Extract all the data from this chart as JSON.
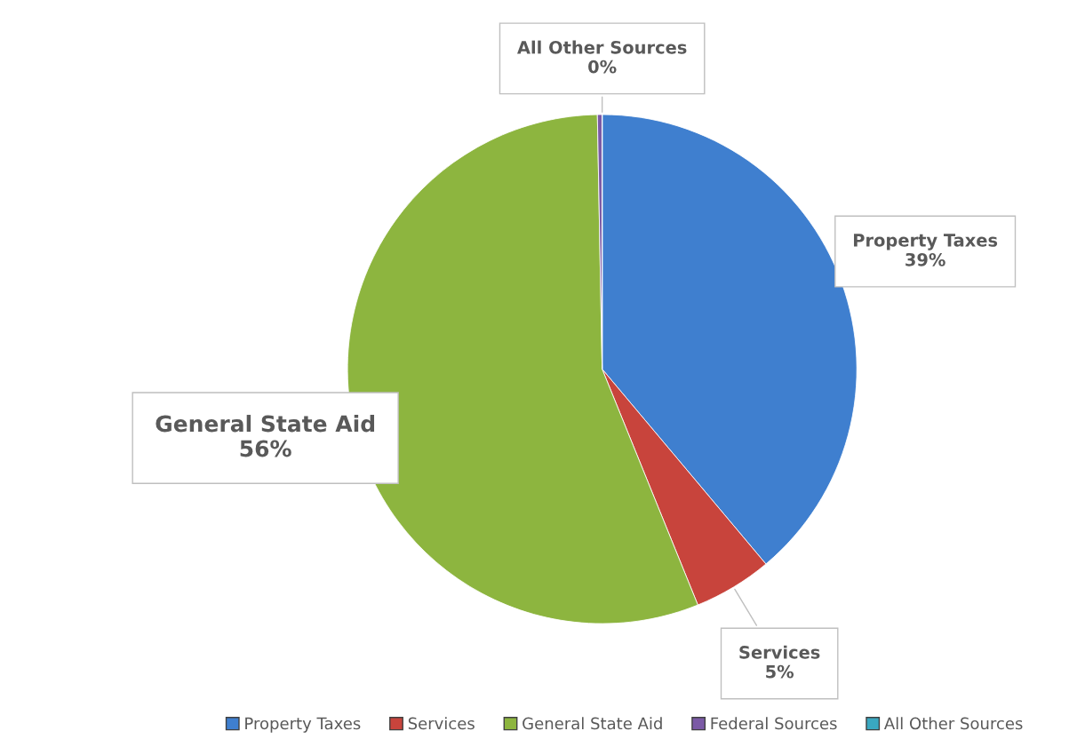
{
  "chart_data": {
    "type": "pie",
    "categories": [
      "Property Taxes",
      "Services",
      "General State Aid",
      "Federal Sources",
      "All Other Sources"
    ],
    "values": [
      39,
      5,
      56,
      0.3,
      0
    ],
    "value_labels": [
      "39%",
      "5%",
      "56%",
      null,
      "0%"
    ],
    "colors": [
      "#3f7fcf",
      "#c8443c",
      "#8db53f",
      "#7b5aa6",
      "#3aa8c1"
    ],
    "legend": "bottom"
  }
}
